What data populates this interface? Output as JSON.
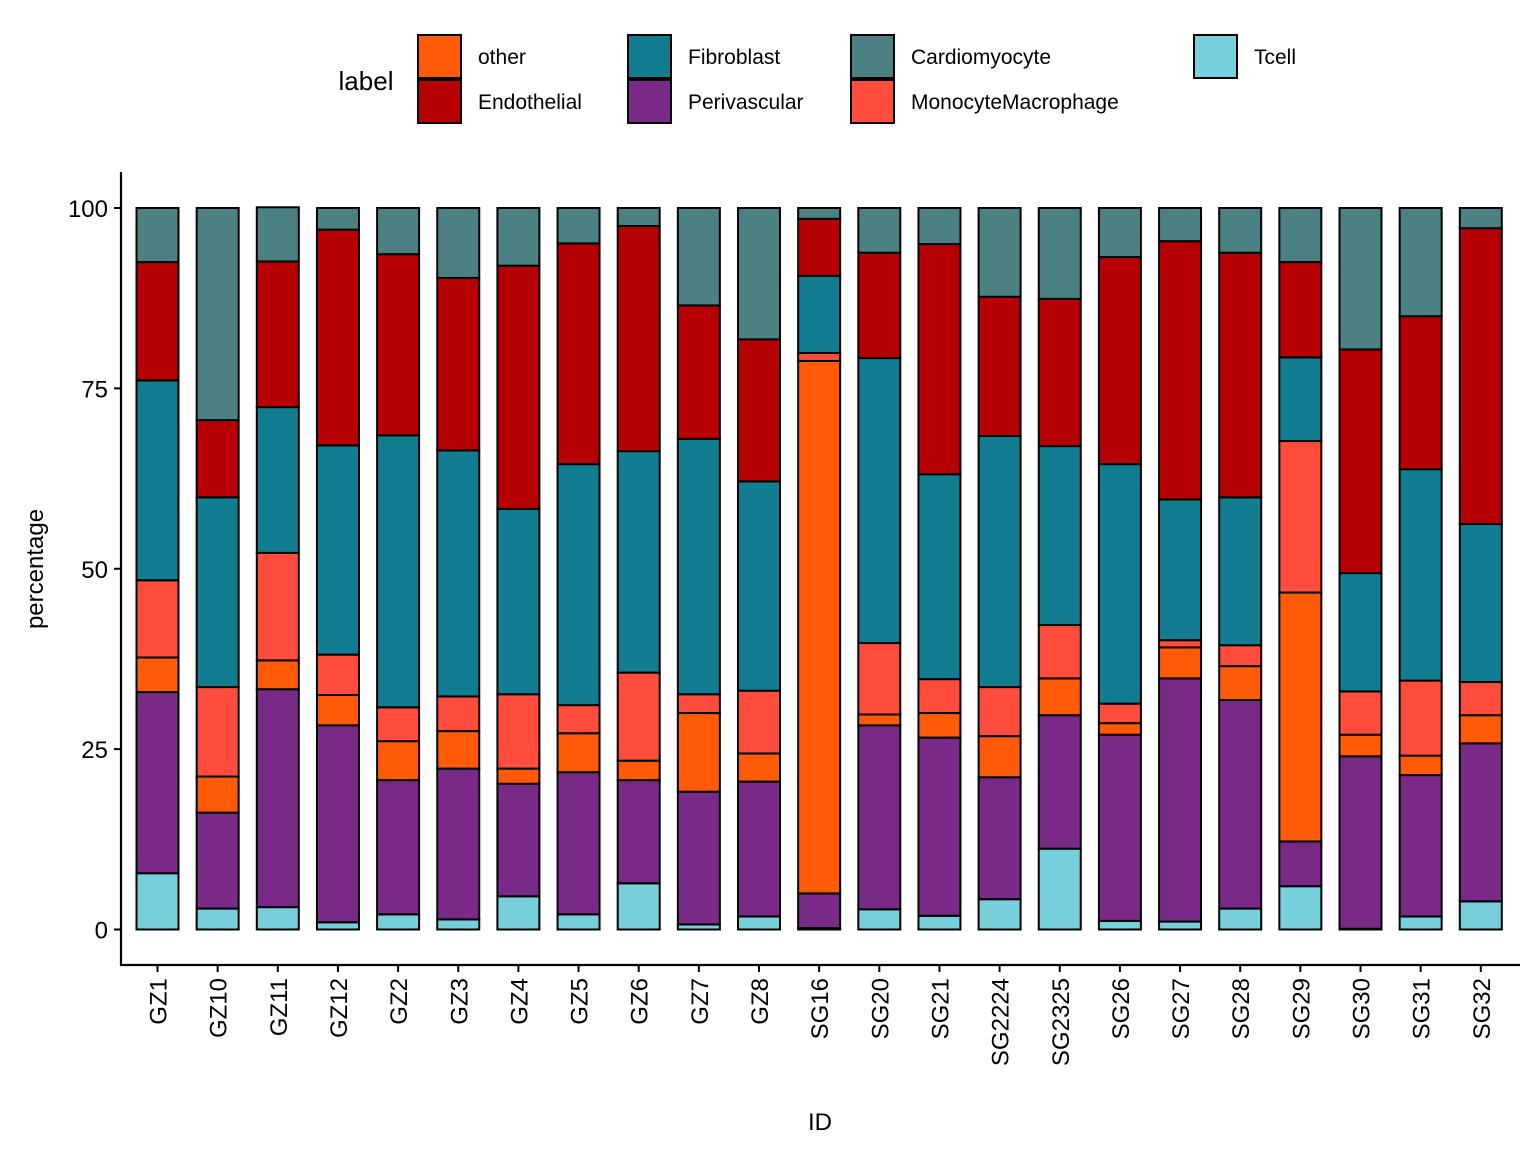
{
  "chart_data": {
    "type": "bar",
    "stacked": true,
    "title": "",
    "xlabel": "ID",
    "ylabel": "percentage",
    "ylim": [
      0,
      100
    ],
    "yticks": [
      0,
      25,
      50,
      75,
      100
    ],
    "grid": false,
    "legend": {
      "title": "label",
      "placement": "top",
      "entries": [
        "other",
        "Endothelial",
        "Fibroblast",
        "Perivascular",
        "Cardiomyocyte",
        "MonocyteMacrophage",
        "Tcell"
      ]
    },
    "colors": {
      "other": "#FF5A08",
      "Endothelial": "#B70003",
      "Fibroblast": "#127D90",
      "Perivascular": "#782A86",
      "Cardiomyocyte": "#4C8183",
      "MonocyteMacrophage": "#FF4C3C",
      "Tcell": "#76CFDA"
    },
    "stack_order_bottom_to_top": [
      "Tcell",
      "Perivascular",
      "other",
      "MonocyteMacrophage",
      "Fibroblast",
      "Endothelial",
      "Cardiomyocyte"
    ],
    "categories": [
      "GZ1",
      "GZ10",
      "GZ11",
      "GZ12",
      "GZ2",
      "GZ3",
      "GZ4",
      "GZ5",
      "GZ6",
      "GZ7",
      "GZ8",
      "SG16",
      "SG20",
      "SG21",
      "SG2224",
      "SG2325",
      "SG26",
      "SG27",
      "SG28",
      "SG29",
      "SG30",
      "SG31",
      "SG32"
    ],
    "series": [
      {
        "name": "Tcell",
        "values": [
          7.8,
          2.9,
          3.1,
          1.0,
          2.1,
          1.4,
          4.6,
          2.1,
          6.4,
          0.7,
          1.8,
          0.2,
          2.8,
          1.9,
          4.2,
          11.2,
          1.2,
          1.1,
          2.9,
          6.0,
          0.1,
          1.8,
          3.9
        ]
      },
      {
        "name": "Perivascular",
        "values": [
          25.1,
          13.3,
          30.2,
          27.3,
          18.6,
          20.9,
          15.6,
          19.7,
          14.3,
          18.4,
          18.7,
          4.8,
          25.5,
          24.7,
          16.9,
          18.5,
          25.8,
          33.7,
          28.9,
          6.2,
          23.9,
          19.6,
          21.9
        ]
      },
      {
        "name": "other",
        "values": [
          4.8,
          5.0,
          4.0,
          4.2,
          5.4,
          5.2,
          2.1,
          5.4,
          2.7,
          10.9,
          3.9,
          73.8,
          1.5,
          3.4,
          5.7,
          5.1,
          1.6,
          4.3,
          4.7,
          34.5,
          3.0,
          2.7,
          3.9
        ]
      },
      {
        "name": "MonocyteMacrophage",
        "values": [
          10.7,
          12.4,
          14.9,
          5.6,
          4.7,
          4.8,
          10.3,
          3.9,
          12.2,
          2.6,
          8.7,
          1.1,
          9.9,
          4.7,
          6.8,
          7.4,
          2.7,
          1.0,
          2.9,
          21.0,
          6.0,
          10.4,
          4.6
        ]
      },
      {
        "name": "Fibroblast",
        "values": [
          27.7,
          26.3,
          20.2,
          29.0,
          37.7,
          34.1,
          25.7,
          33.4,
          30.7,
          35.4,
          29.0,
          10.7,
          39.5,
          28.4,
          34.8,
          24.8,
          33.2,
          19.5,
          20.5,
          11.6,
          16.4,
          29.3,
          21.9
        ]
      },
      {
        "name": "Endothelial",
        "values": [
          16.4,
          10.7,
          20.2,
          29.9,
          25.1,
          23.9,
          33.7,
          30.6,
          31.2,
          18.5,
          19.7,
          7.9,
          14.6,
          31.9,
          19.3,
          20.4,
          28.7,
          35.8,
          33.9,
          13.2,
          31.0,
          21.2,
          41.0
        ]
      },
      {
        "name": "Cardiomyocyte",
        "values": [
          7.5,
          29.4,
          7.5,
          3.0,
          6.4,
          9.7,
          8.0,
          4.9,
          2.5,
          13.5,
          18.2,
          1.5,
          6.2,
          5.0,
          12.3,
          12.6,
          6.8,
          4.6,
          6.2,
          7.5,
          19.6,
          15.0,
          2.8
        ]
      }
    ]
  }
}
